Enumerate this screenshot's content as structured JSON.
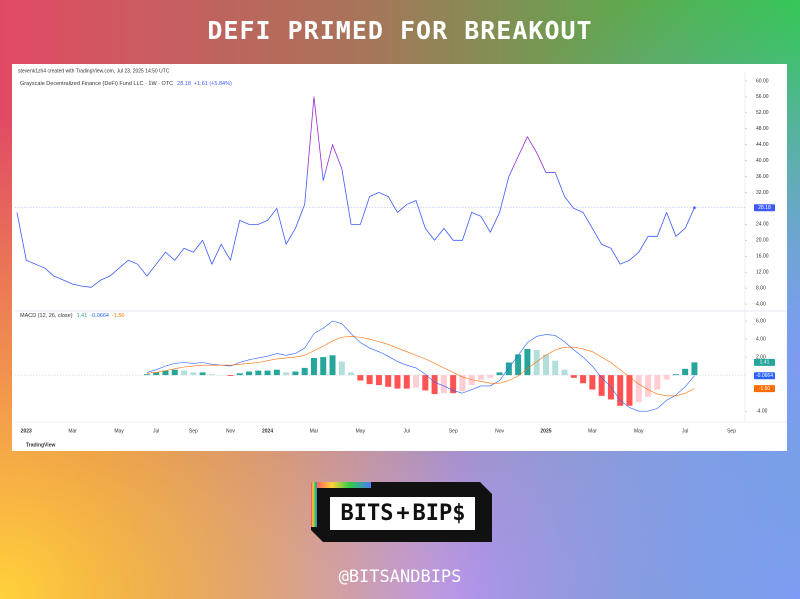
{
  "header": {
    "title": "DEFI PRIMED FOR BREAKOUT"
  },
  "logo": {
    "left": "BITS",
    "plus": "+",
    "right": "BIP$"
  },
  "footer": {
    "handle": "@BITSANDBIPS"
  },
  "chart_data": [
    {
      "type": "line",
      "watermark": "stevenk1zh4 created with TradingView.com, Jul 23, 2025 14:50 UTC",
      "title": "Grayscale Decentralized Finance (DeFi) Fund LLC · 1W · OTC",
      "change": "+1.61 (+5.84%)",
      "brand": "TradingView",
      "categories": [
        null,
        "2023",
        null,
        null,
        null,
        null,
        "Mar",
        null,
        null,
        null,
        null,
        "May",
        null,
        null,
        null,
        "Jul",
        null,
        null,
        null,
        "Sep",
        null,
        null,
        null,
        "Nov",
        null,
        null,
        null,
        "2024",
        null,
        null,
        null,
        null,
        "Mar",
        null,
        null,
        null,
        null,
        "May",
        null,
        null,
        null,
        null,
        "Jul",
        null,
        null,
        null,
        null,
        "Sep",
        null,
        null,
        null,
        null,
        "Nov",
        null,
        null,
        null,
        null,
        "2025",
        null,
        null,
        null,
        null,
        "Mar",
        null,
        null,
        null,
        null,
        "May",
        null,
        null,
        null,
        null,
        "Jul",
        null,
        null,
        null,
        null,
        "Sep"
      ],
      "series": [
        {
          "name": "DeFi",
          "color": "#3d5afe",
          "high_color": "#9c27d0",
          "values": [
            27,
            15,
            14,
            13,
            11,
            10,
            9,
            8.5,
            8.2,
            10,
            11,
            13,
            15,
            14,
            11,
            14,
            17,
            15,
            18,
            17,
            20,
            14,
            19,
            15,
            25,
            24,
            24,
            25,
            28,
            19,
            23,
            29,
            56,
            35,
            44,
            38,
            24,
            24,
            31,
            32,
            31,
            27,
            29,
            30,
            23,
            20,
            23,
            20,
            20,
            27,
            26,
            22,
            27,
            36,
            41,
            46,
            42,
            37,
            37,
            31,
            28,
            27,
            23,
            19,
            18,
            14,
            15,
            17,
            21,
            21,
            27,
            21,
            23,
            28.18,
            null,
            null,
            null,
            null
          ]
        }
      ],
      "ylim": [
        2.5,
        62.25
      ],
      "yticks": [
        {
          "value": 4,
          "label": "4.00"
        },
        {
          "value": 8,
          "label": "8.00"
        },
        {
          "value": 12,
          "label": "12.00"
        },
        {
          "value": 16,
          "label": "16.00"
        },
        {
          "value": 20,
          "label": "20.00"
        },
        {
          "value": 24,
          "label": "24.00"
        },
        {
          "value": 32,
          "label": "32.00"
        },
        {
          "value": 36,
          "label": "36.00"
        },
        {
          "value": 40,
          "label": "40.00"
        },
        {
          "value": 44,
          "label": "44.00"
        },
        {
          "value": 48,
          "label": "48.00"
        },
        {
          "value": 52,
          "label": "52.00"
        },
        {
          "value": 56,
          "label": "56.00"
        },
        {
          "value": 60,
          "label": "60.00"
        }
      ],
      "grid": false
    },
    {
      "type": "combo",
      "title": "MACD (12, 26, close)",
      "histogram_colors": [
        "#26a69a",
        "#b2dfdb",
        "#ffcdd2",
        "#ff5252"
      ],
      "series": [
        {
          "name": "Histogram",
          "type": "bar",
          "color": "#26a69a",
          "values": [
            null,
            null,
            null,
            null,
            null,
            null,
            null,
            null,
            null,
            null,
            null,
            null,
            null,
            null,
            0.1,
            0.3,
            0.5,
            0.6,
            0.5,
            0.3,
            0.3,
            0.1,
            0,
            -0.1,
            0.2,
            0.4,
            0.5,
            0.5,
            0.6,
            0.3,
            0.4,
            0.8,
            1.9,
            2.0,
            2.2,
            1.5,
            0.3,
            -0.6,
            -1.0,
            -1.1,
            -1.3,
            -1.5,
            -1.5,
            -1.4,
            -1.7,
            -2.1,
            -2.0,
            -2.0,
            -1.8,
            -1.1,
            -0.5,
            -0.3,
            0.3,
            1.4,
            2.3,
            2.9,
            2.8,
            2.3,
            1.6,
            0.6,
            -0.3,
            -0.9,
            -1.6,
            -2.3,
            -2.7,
            -3.4,
            -3.4,
            -3.0,
            -2.4,
            -1.6,
            -0.5,
            0.1,
            0.7,
            1.41,
            null,
            null,
            null,
            null
          ]
        },
        {
          "name": "MACD",
          "type": "line",
          "color": "#2962ff",
          "values": [
            null,
            null,
            null,
            null,
            null,
            null,
            null,
            null,
            null,
            null,
            null,
            null,
            null,
            null,
            0.3,
            0.6,
            1.0,
            1.3,
            1.4,
            1.3,
            1.4,
            1.2,
            1.1,
            1.0,
            1.4,
            1.7,
            1.9,
            2.1,
            2.4,
            2.2,
            2.4,
            3.0,
            4.6,
            5.2,
            6.0,
            5.7,
            4.6,
            3.6,
            3.0,
            2.6,
            2.1,
            1.5,
            1.1,
            0.8,
            0.1,
            -0.8,
            -1.2,
            -1.7,
            -2.0,
            -1.6,
            -1.2,
            -1.2,
            -0.6,
            0.8,
            2.2,
            3.6,
            4.3,
            4.5,
            4.4,
            3.7,
            2.8,
            2.0,
            1.0,
            -0.3,
            -1.3,
            -2.8,
            -3.6,
            -4.0,
            -4.0,
            -3.7,
            -2.8,
            -2.2,
            -1.3,
            -0.0664,
            null,
            null,
            null,
            null
          ]
        },
        {
          "name": "Signal",
          "type": "line",
          "color": "#ff6d00",
          "values": [
            null,
            null,
            null,
            null,
            null,
            null,
            null,
            null,
            null,
            null,
            null,
            null,
            null,
            null,
            0.2,
            0.3,
            0.5,
            0.7,
            0.9,
            1.0,
            1.1,
            1.1,
            1.1,
            1.1,
            1.2,
            1.3,
            1.4,
            1.6,
            1.8,
            1.9,
            2.0,
            2.2,
            2.7,
            3.2,
            3.8,
            4.2,
            4.3,
            4.2,
            4.0,
            3.7,
            3.4,
            3.0,
            2.6,
            2.2,
            1.8,
            1.3,
            0.8,
            0.3,
            -0.2,
            -0.5,
            -0.7,
            -0.9,
            -0.9,
            -0.6,
            -0.1,
            0.7,
            1.5,
            2.2,
            2.8,
            3.1,
            3.1,
            2.9,
            2.6,
            2.0,
            1.4,
            0.6,
            -0.2,
            -1.0,
            -1.6,
            -2.1,
            -2.3,
            -2.3,
            -2.0,
            -1.5,
            null,
            null,
            null,
            null
          ],
          "value_labels": [
            null,
            null,
            null,
            null,
            null,
            null,
            null,
            null,
            null,
            null,
            null,
            null,
            null,
            null,
            null,
            null,
            null,
            null,
            null,
            null,
            null,
            null,
            null,
            null,
            null,
            null,
            null,
            null,
            null,
            null,
            null,
            null,
            null,
            null,
            null,
            null,
            null,
            null,
            null,
            null,
            null,
            null,
            null,
            null,
            null,
            null,
            null,
            null,
            null,
            null,
            null,
            null,
            null,
            null,
            null,
            null,
            null,
            null,
            null,
            null,
            null,
            null,
            null,
            null,
            null,
            null,
            null,
            null,
            null,
            null,
            null,
            null,
            null,
            "-1.50",
            null,
            null,
            null,
            null
          ]
        }
      ],
      "ylim": [
        -5.2,
        7
      ],
      "yticks": [
        {
          "value": -4,
          "label": "-4.00"
        },
        {
          "value": 2,
          "label": "2.00"
        },
        {
          "value": 4,
          "label": "4.00"
        },
        {
          "value": 6,
          "label": "6.00"
        }
      ],
      "grid": false
    }
  ]
}
